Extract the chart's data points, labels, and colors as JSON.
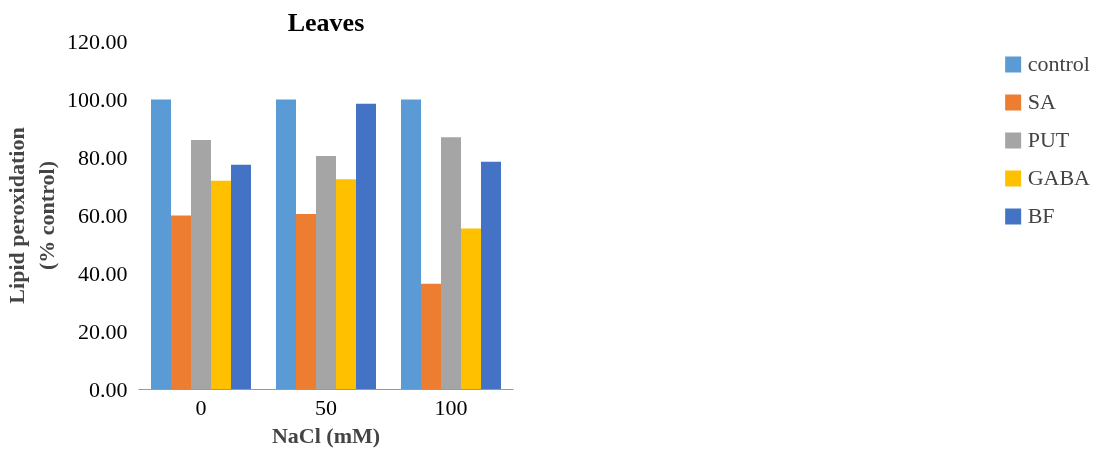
{
  "chart_data": {
    "type": "bar",
    "title": "Leaves",
    "xlabel": "NaCl (mM)",
    "ylabel": "Lipid peroxidation\n(% control)",
    "categories": [
      "0",
      "50",
      "100"
    ],
    "series": [
      {
        "name": "control",
        "color": "#5b9bd5",
        "values": [
          100,
          100,
          100
        ]
      },
      {
        "name": "SA",
        "color": "#ed7d31",
        "values": [
          60,
          60.5,
          36.5
        ]
      },
      {
        "name": "PUT",
        "color": "#a5a5a5",
        "values": [
          86,
          80.5,
          87
        ]
      },
      {
        "name": "GABA",
        "color": "#ffc000",
        "values": [
          72,
          72.5,
          55.5
        ]
      },
      {
        "name": "BF",
        "color": "#4472c4",
        "values": [
          77.5,
          98.5,
          78.5
        ]
      }
    ],
    "ylim": [
      0,
      120
    ],
    "yticks": [
      {
        "value": 0,
        "label": "0.00"
      },
      {
        "value": 20,
        "label": "20.00"
      },
      {
        "value": 40,
        "label": "40.00"
      },
      {
        "value": 60,
        "label": "60.00"
      },
      {
        "value": 80,
        "label": "80.00"
      },
      {
        "value": 100,
        "label": "100.00"
      },
      {
        "value": 120,
        "label": "120.00"
      }
    ],
    "grid": false,
    "legend": "right"
  }
}
